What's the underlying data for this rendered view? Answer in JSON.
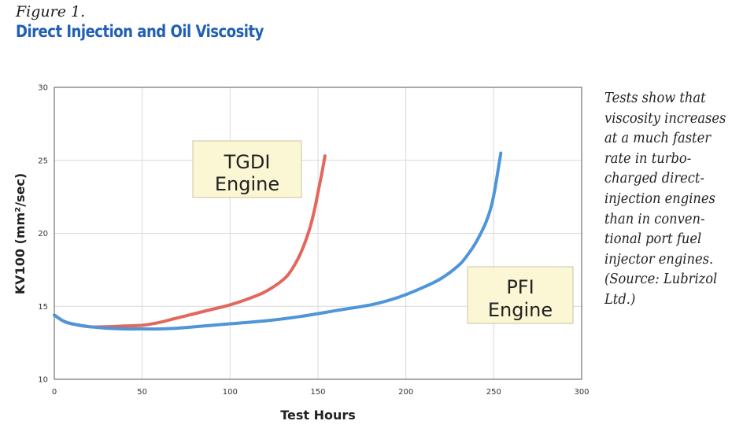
{
  "figure_label": "Figure 1.",
  "title": "Direct Injection and Oil Viscosity",
  "caption_lines": [
    "Tests show that",
    "viscosity increases",
    "at a much faster",
    "rate in turbo-",
    "charged direct-",
    "injection engines",
    "than in conven-",
    "tional port fuel",
    "injector engines.",
    "(Source: Lubrizol",
    "Ltd.)"
  ],
  "chart_data": {
    "type": "line",
    "xlabel": "Test Hours",
    "ylabel": "KV100 (mm²/sec)",
    "xlim": [
      0,
      300
    ],
    "ylim": [
      10,
      30
    ],
    "xticks": [
      0,
      50,
      100,
      150,
      200,
      250,
      300
    ],
    "yticks": [
      10,
      15,
      20,
      25,
      30
    ],
    "grid": true,
    "series": [
      {
        "name": "TGDI Engine",
        "color": "#e2675d",
        "x": [
          0,
          5,
          10,
          20,
          30,
          40,
          50,
          60,
          70,
          80,
          90,
          100,
          110,
          120,
          130,
          135,
          140,
          145,
          148,
          150,
          152,
          154
        ],
        "y": [
          14.4,
          14.0,
          13.8,
          13.6,
          13.6,
          13.65,
          13.7,
          13.9,
          14.2,
          14.5,
          14.8,
          15.1,
          15.5,
          16.0,
          16.8,
          17.5,
          18.6,
          20.2,
          21.6,
          22.8,
          24.0,
          25.3
        ]
      },
      {
        "name": "PFI Engine",
        "color": "#4f95d8",
        "x": [
          0,
          5,
          10,
          20,
          30,
          40,
          50,
          60,
          70,
          80,
          90,
          100,
          120,
          140,
          160,
          180,
          190,
          200,
          210,
          220,
          230,
          235,
          240,
          245,
          248,
          250,
          252,
          254
        ],
        "y": [
          14.4,
          14.0,
          13.8,
          13.6,
          13.5,
          13.45,
          13.45,
          13.45,
          13.5,
          13.6,
          13.7,
          13.8,
          14.0,
          14.3,
          14.7,
          15.1,
          15.4,
          15.8,
          16.3,
          16.9,
          17.8,
          18.5,
          19.4,
          20.6,
          21.6,
          22.6,
          24.0,
          25.5
        ]
      }
    ]
  },
  "annotations": {
    "tgdi": {
      "line1": "TGDI",
      "line2": "Engine"
    },
    "pfi": {
      "line1": "PFI",
      "line2": "Engine"
    }
  },
  "colors": {
    "title": "#1f5fb4",
    "tgdi_line": "#e2675d",
    "pfi_line": "#4f95d8",
    "annotation_fill": "#fbf6d3",
    "grid": "#d9d9d9"
  }
}
